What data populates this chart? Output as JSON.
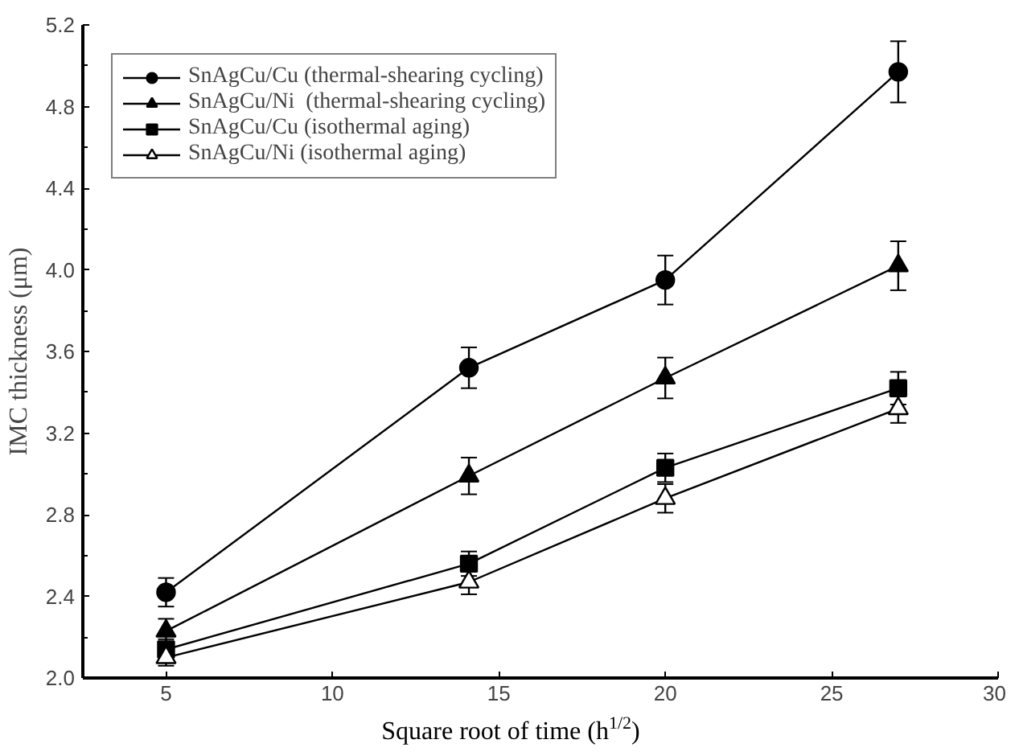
{
  "chart_data": {
    "type": "line",
    "xlabel": "Square root of time (h$^{1/2}$)",
    "ylabel": "IMC thickness (μm)",
    "x": [
      5,
      14.1,
      20,
      27
    ],
    "xlim": [
      2.5,
      30
    ],
    "xticks": [
      5,
      10,
      15,
      20,
      25,
      30
    ],
    "ylim": [
      2.0,
      5.2
    ],
    "yticks": [
      {
        "value": 2.0,
        "label": "2.0"
      },
      2.4,
      2.8,
      3.2,
      3.6,
      {
        "value": 4.0,
        "label": "4.0"
      },
      4.4,
      4.8,
      5.2
    ],
    "grid": false,
    "legend": "top left",
    "line_style": "solid",
    "series": [
      {
        "name": "SnAgCu/Cu (thermal-shearing cycling)",
        "color": "#000000",
        "marker": "circle",
        "values": [
          2.42,
          3.52,
          3.95,
          4.97
        ],
        "errors": [
          0.07,
          0.1,
          0.12,
          0.15
        ]
      },
      {
        "name": "SnAgCu/Ni  (thermal-shearing cycling)",
        "color": "#000000",
        "marker": "triangle",
        "values": [
          2.23,
          2.99,
          3.47,
          4.02
        ],
        "errors": [
          0.06,
          0.09,
          0.1,
          0.12
        ]
      },
      {
        "name": "SnAgCu/Cu (isothermal aging)",
        "color": "#000000",
        "marker": "square",
        "values": [
          2.14,
          2.56,
          3.03,
          3.42
        ],
        "errors": [
          0.05,
          0.06,
          0.07,
          0.08
        ]
      },
      {
        "name": "SnAgCu/Ni (isothermal aging)",
        "color": "#000000",
        "marker": "triangle_open",
        "values": [
          2.1,
          2.47,
          2.88,
          3.32
        ],
        "errors": [
          0.04,
          0.06,
          0.07,
          0.07
        ]
      }
    ]
  }
}
